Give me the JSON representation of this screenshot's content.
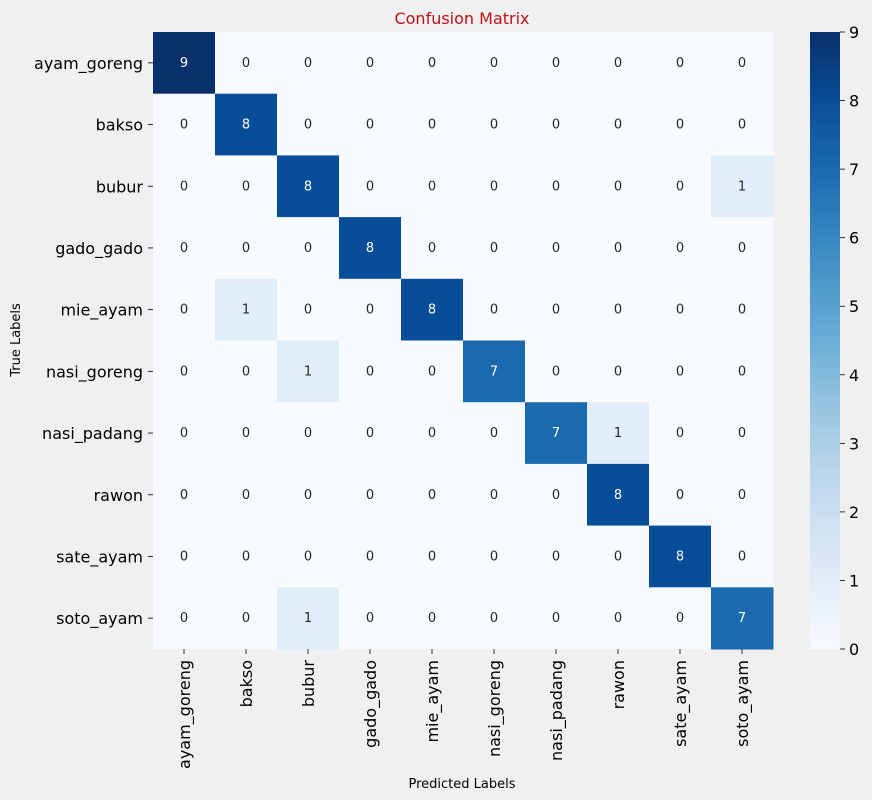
{
  "chart_data": {
    "type": "heatmap",
    "title": "Confusion Matrix",
    "xlabel": "Predicted Labels",
    "ylabel": "True Labels",
    "x_categories": [
      "ayam_goreng",
      "bakso",
      "bubur",
      "gado_gado",
      "mie_ayam",
      "nasi_goreng",
      "nasi_padang",
      "rawon",
      "sate_ayam",
      "soto_ayam"
    ],
    "y_categories": [
      "ayam_goreng",
      "bakso",
      "bubur",
      "gado_gado",
      "mie_ayam",
      "nasi_goreng",
      "nasi_padang",
      "rawon",
      "sate_ayam",
      "soto_ayam"
    ],
    "values": [
      [
        9,
        0,
        0,
        0,
        0,
        0,
        0,
        0,
        0,
        0
      ],
      [
        0,
        8,
        0,
        0,
        0,
        0,
        0,
        0,
        0,
        0
      ],
      [
        0,
        0,
        8,
        0,
        0,
        0,
        0,
        0,
        0,
        1
      ],
      [
        0,
        0,
        0,
        8,
        0,
        0,
        0,
        0,
        0,
        0
      ],
      [
        0,
        1,
        0,
        0,
        8,
        0,
        0,
        0,
        0,
        0
      ],
      [
        0,
        0,
        1,
        0,
        0,
        7,
        0,
        0,
        0,
        0
      ],
      [
        0,
        0,
        0,
        0,
        0,
        0,
        7,
        1,
        0,
        0
      ],
      [
        0,
        0,
        0,
        0,
        0,
        0,
        0,
        8,
        0,
        0
      ],
      [
        0,
        0,
        0,
        0,
        0,
        0,
        0,
        0,
        8,
        0
      ],
      [
        0,
        0,
        1,
        0,
        0,
        0,
        0,
        0,
        0,
        7
      ]
    ],
    "colorbar": {
      "min": 0,
      "max": 9,
      "ticks": [
        0,
        1,
        2,
        3,
        4,
        5,
        6,
        7,
        8,
        9
      ],
      "colormap": "Blues"
    },
    "colors": {
      "title": "#c0101a",
      "background": "#f0f0f0",
      "low": "#f7fbff",
      "high": "#08306b"
    }
  }
}
